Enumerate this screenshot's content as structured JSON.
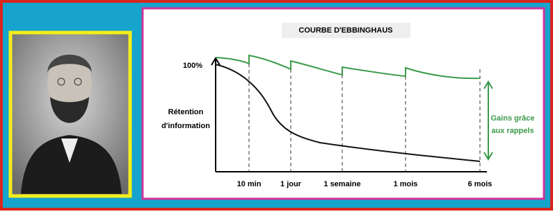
{
  "diagram": {
    "title": "COURBE D'EBBINGHAUS",
    "y_top_label": "100%",
    "y_axis_label": [
      "Rétention",
      "d'information"
    ],
    "annotation": [
      "Gains grâce",
      "aux rappels"
    ],
    "x_labels": [
      "10 min",
      "1 jour",
      "1 semaine",
      "1 mois",
      "6 mois"
    ]
  }
}
